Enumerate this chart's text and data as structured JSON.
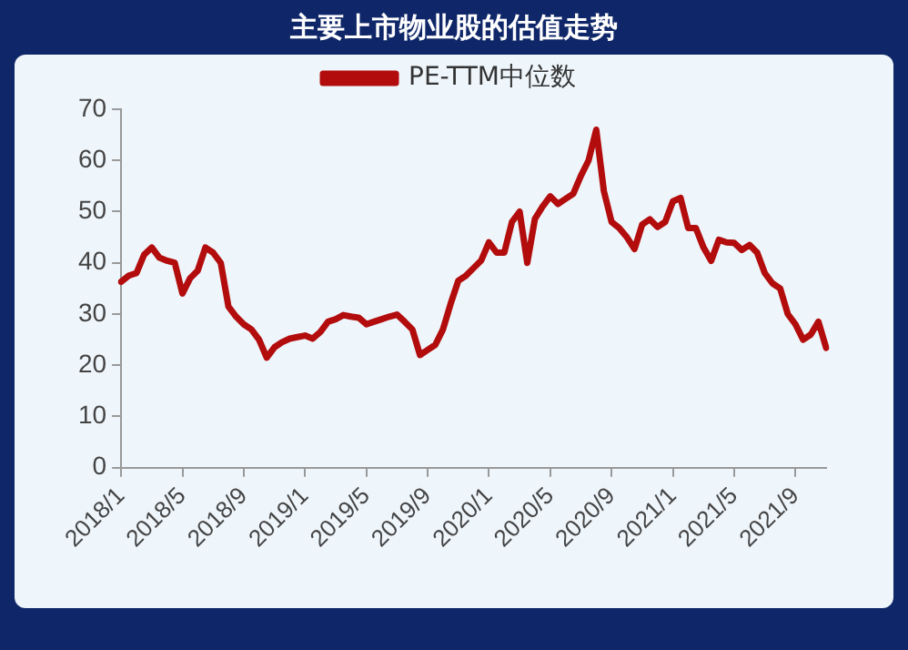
{
  "chart_data": {
    "type": "line",
    "title": "主要上市物业股的估值走势",
    "categories": [
      "2018/1",
      null,
      null,
      null,
      null,
      null,
      null,
      null,
      "2018/5",
      null,
      null,
      null,
      null,
      null,
      null,
      null,
      "2018/9",
      null,
      null,
      null,
      null,
      null,
      null,
      null,
      "2019/1",
      null,
      null,
      null,
      null,
      null,
      null,
      null,
      "2019/5",
      null,
      null,
      null,
      null,
      null,
      null,
      null,
      "2019/9",
      null,
      null,
      null,
      null,
      null,
      null,
      null,
      "2020/1",
      null,
      null,
      null,
      null,
      null,
      null,
      null,
      "2020/5",
      null,
      null,
      null,
      null,
      null,
      null,
      null,
      "2020/9",
      null,
      null,
      null,
      null,
      null,
      null,
      null,
      "2021/1",
      null,
      null,
      null,
      null,
      null,
      null,
      null,
      "2021/5",
      null,
      null,
      null,
      null,
      null,
      null,
      null,
      "2021/9",
      null,
      null,
      null,
      null
    ],
    "series": [
      {
        "name": "PE-TTM中位数",
        "color": "#b20c0c",
        "values": [
          36.3,
          37.5,
          38,
          41.6,
          43,
          41,
          40.4,
          40,
          34,
          37,
          38.5,
          43,
          42,
          40,
          31.5,
          29.5,
          28,
          27,
          25,
          21.5,
          23.5,
          24.5,
          25.2,
          25.5,
          25.8,
          25.2,
          26.5,
          28.5,
          29,
          29.8,
          29.5,
          29.3,
          28,
          28.5,
          29,
          29.5,
          29.9,
          28.5,
          27,
          22,
          23,
          24,
          27,
          32,
          36.5,
          37.5,
          39,
          40.5,
          44,
          42,
          42,
          48,
          50,
          40,
          48.6,
          51,
          53,
          51.5,
          52.5,
          53.5,
          57,
          60,
          66,
          54,
          48,
          46.8,
          45,
          42.7,
          47.5,
          48.5,
          47,
          48,
          52,
          52.7,
          46.8,
          46.8,
          43,
          40.4,
          44.5,
          44,
          43.9,
          42.5,
          43.5,
          42,
          38,
          36,
          35,
          30,
          28,
          25,
          26,
          28.5,
          23.4
        ]
      }
    ],
    "ylim": [
      0,
      70
    ],
    "yticks": [
      0,
      10,
      20,
      30,
      40,
      50,
      60,
      70
    ],
    "legend": "top",
    "marker": "none",
    "line_style": "solid"
  }
}
